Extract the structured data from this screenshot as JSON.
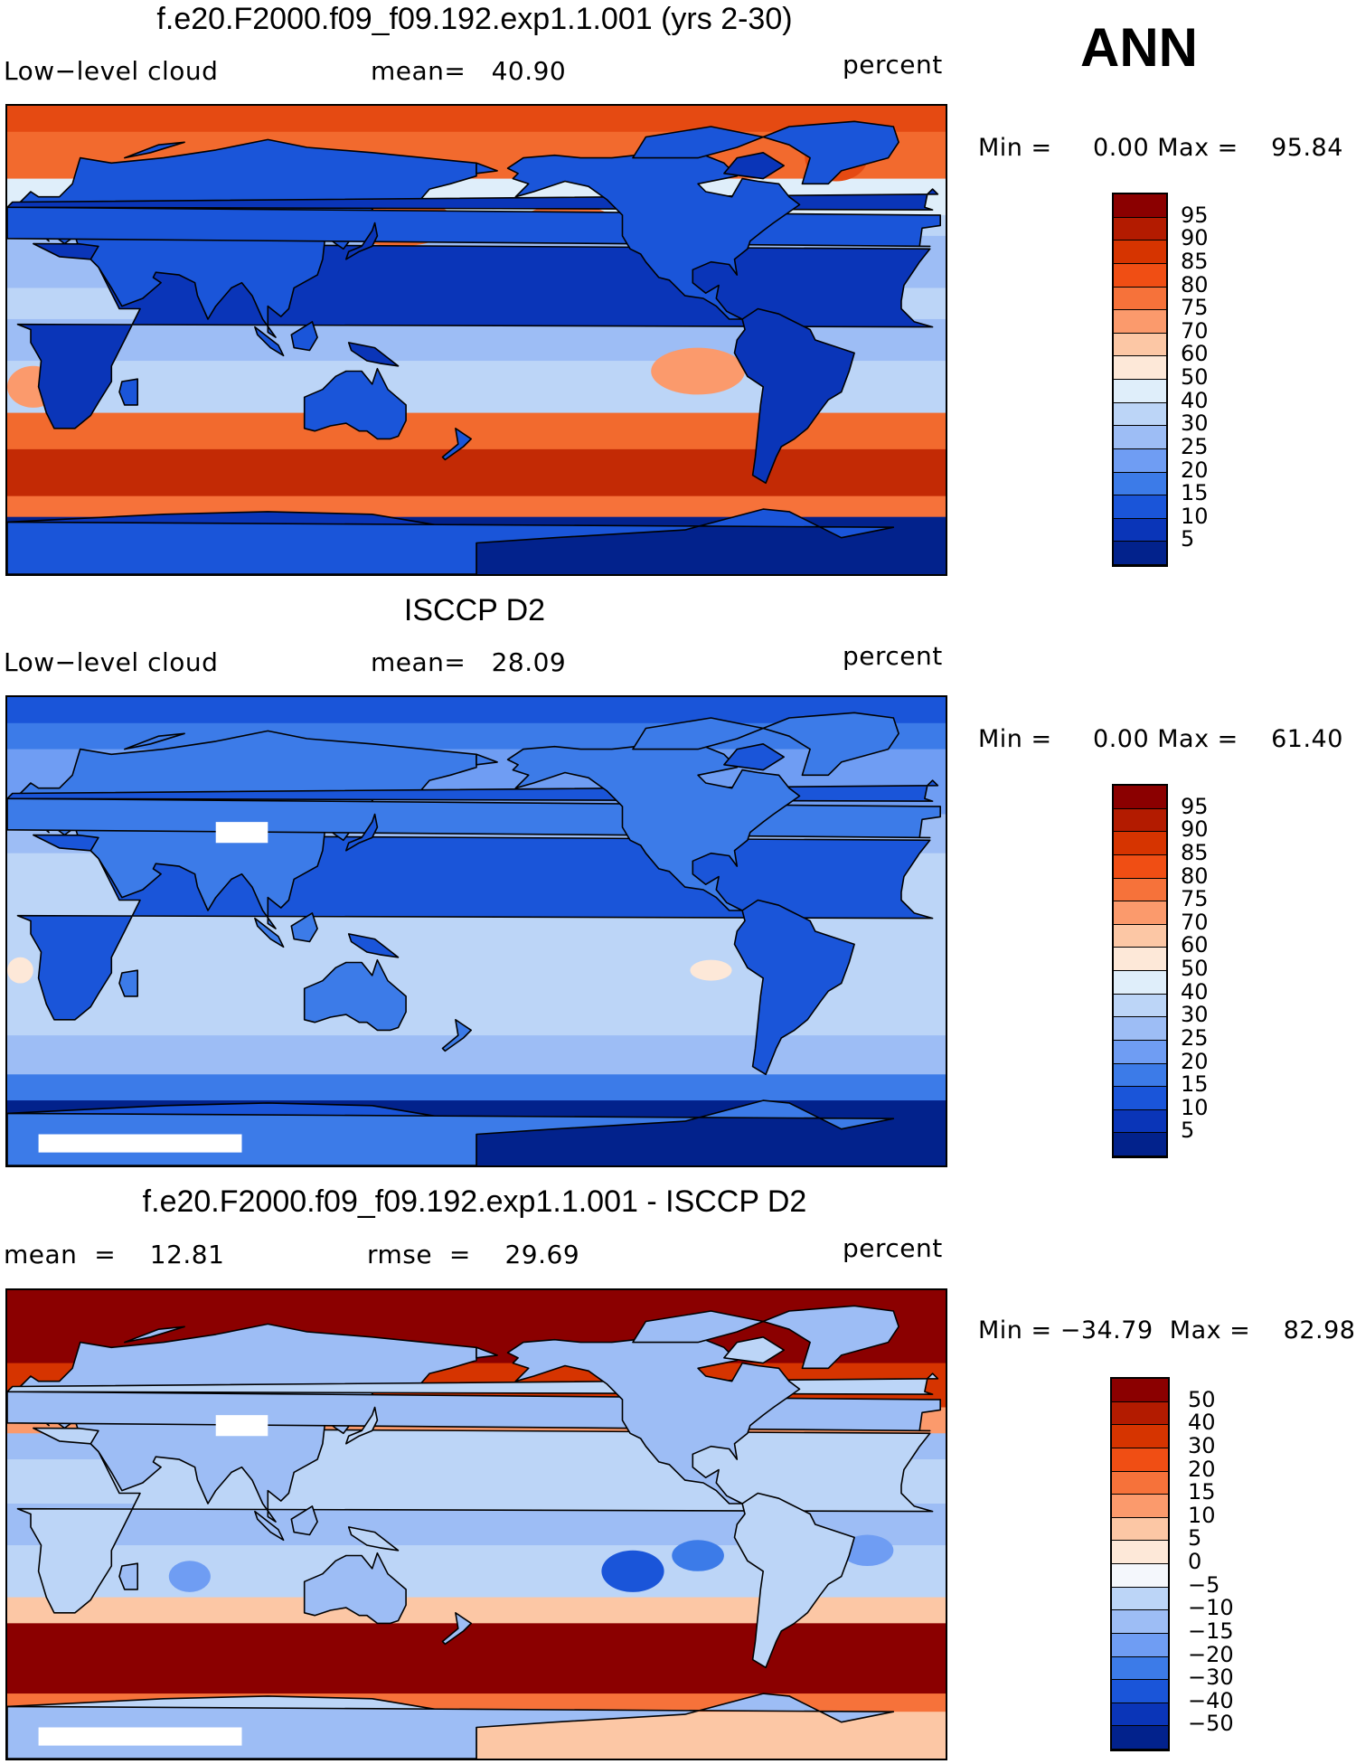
{
  "season": "ANN",
  "panels": [
    {
      "title": "f.e20.F2000.f09_f09.192.exp1.1.001 (yrs 2-30)",
      "left_label": "Low−level cloud",
      "center_label": "mean=   40.90",
      "units": "percent",
      "minmax": "Min =     0.00 Max =    95.84",
      "field": "model",
      "colorbar": {
        "colors": [
          "#8b0000",
          "#b31b00",
          "#d63400",
          "#f04e14",
          "#f6723a",
          "#fb9a6c",
          "#fcc7a5",
          "#fde8d8",
          "#dfeefa",
          "#bcd5f7",
          "#9dbdf5",
          "#6f9df3",
          "#3c7be8",
          "#1a55d9",
          "#0a35b8",
          "#02228c"
        ],
        "labels": [
          "95",
          "90",
          "85",
          "80",
          "75",
          "70",
          "60",
          "50",
          "40",
          "30",
          "25",
          "20",
          "15",
          "10",
          "5"
        ]
      }
    },
    {
      "title": "ISCCP D2",
      "left_label": "Low−level cloud",
      "center_label": "mean=   28.09",
      "units": "percent",
      "minmax": "Min =     0.00 Max =    61.40",
      "field": "obs",
      "colorbar": {
        "colors": [
          "#8b0000",
          "#b31b00",
          "#d63400",
          "#f04e14",
          "#f6723a",
          "#fb9a6c",
          "#fcc7a5",
          "#fde8d8",
          "#dfeefa",
          "#bcd5f7",
          "#9dbdf5",
          "#6f9df3",
          "#3c7be8",
          "#1a55d9",
          "#0a35b8",
          "#02228c"
        ],
        "labels": [
          "95",
          "90",
          "85",
          "80",
          "75",
          "70",
          "60",
          "50",
          "40",
          "30",
          "25",
          "20",
          "15",
          "10",
          "5"
        ]
      }
    },
    {
      "title": "f.e20.F2000.f09_f09.192.exp1.1.001 - ISCCP D2",
      "left_label": "mean  =    12.81",
      "center_label": "rmse  =    29.69",
      "units": "percent",
      "minmax": "Min = −34.79  Max =    82.98",
      "field": "diff",
      "colorbar": {
        "colors": [
          "#8b0000",
          "#b31b00",
          "#d63400",
          "#f04e14",
          "#f6723a",
          "#fb9a6c",
          "#fcc7a5",
          "#fde8d8",
          "#f4f7fc",
          "#bcd5f7",
          "#9dbdf5",
          "#6f9df3",
          "#3c7be8",
          "#1a55d9",
          "#0a35b8",
          "#02228c"
        ],
        "labels": [
          "50",
          "40",
          "30",
          "20",
          "15",
          "10",
          "5",
          "0",
          "−5",
          "−10",
          "−15",
          "−20",
          "−30",
          "−40",
          "−50"
        ]
      }
    }
  ]
}
